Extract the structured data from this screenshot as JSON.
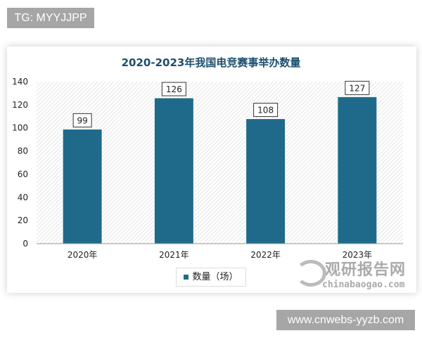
{
  "tag": "TG: MYYJJPP",
  "url": "www.cnwebs-yyzb.com",
  "watermark": {
    "cn": "观研报告网",
    "en": "chinabaogao.com"
  },
  "chart_data": {
    "type": "bar",
    "title": "2020-2023年我国电竞赛事举办数量",
    "categories": [
      "2020年",
      "2021年",
      "2022年",
      "2023年"
    ],
    "series": [
      {
        "name": "数量（场）",
        "values": [
          99,
          126,
          108,
          127
        ],
        "color": "#1f6a8a"
      }
    ],
    "ylim": [
      0,
      140
    ],
    "yticks": [
      0,
      20,
      40,
      60,
      80,
      100,
      120,
      140
    ],
    "legend": "bottom",
    "grid": false
  }
}
